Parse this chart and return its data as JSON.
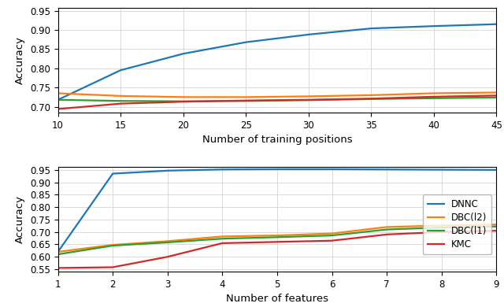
{
  "top": {
    "x": [
      10,
      15,
      20,
      25,
      30,
      35,
      40,
      45
    ],
    "DNNC": [
      0.718,
      0.795,
      0.838,
      0.868,
      0.888,
      0.904,
      0.91,
      0.915
    ],
    "DBC_l2": [
      0.735,
      0.728,
      0.725,
      0.725,
      0.727,
      0.73,
      0.735,
      0.737
    ],
    "DBC_l1": [
      0.718,
      0.715,
      0.714,
      0.715,
      0.717,
      0.72,
      0.722,
      0.724
    ],
    "KMC": [
      0.694,
      0.708,
      0.713,
      0.716,
      0.718,
      0.721,
      0.726,
      0.729
    ],
    "ylim": [
      0.685,
      0.958
    ],
    "yticks": [
      0.7,
      0.75,
      0.8,
      0.85,
      0.9,
      0.95
    ],
    "xlim": [
      10,
      45
    ],
    "xticks": [
      10,
      15,
      20,
      25,
      30,
      35,
      40,
      45
    ],
    "xlabel": "Number of training positions",
    "ylabel": "Accuracy"
  },
  "bottom": {
    "x": [
      1,
      2,
      3,
      4,
      5,
      6,
      7,
      8,
      9
    ],
    "DNNC": [
      0.62,
      0.935,
      0.947,
      0.952,
      0.953,
      0.953,
      0.952,
      0.951,
      0.95
    ],
    "DBC_l2": [
      0.62,
      0.648,
      0.663,
      0.682,
      0.686,
      0.694,
      0.72,
      0.726,
      0.73
    ],
    "DBC_l1": [
      0.61,
      0.645,
      0.658,
      0.673,
      0.679,
      0.686,
      0.71,
      0.718,
      0.722
    ],
    "KMC": [
      0.555,
      0.558,
      0.6,
      0.655,
      0.66,
      0.665,
      0.69,
      0.7,
      0.705
    ],
    "ylim": [
      0.54,
      0.962
    ],
    "yticks": [
      0.55,
      0.6,
      0.65,
      0.7,
      0.75,
      0.8,
      0.85,
      0.9,
      0.95
    ],
    "xlim": [
      1,
      9
    ],
    "xticks": [
      1,
      2,
      3,
      4,
      5,
      6,
      7,
      8,
      9
    ],
    "xlabel": "Number of features",
    "ylabel": "Accuracy"
  },
  "colors": {
    "DNNC": "#1f77b4",
    "DBC_l2": "#ff7f0e",
    "DBC_l1": "#2ca02c",
    "KMC": "#d62728"
  },
  "legend_labels": [
    "DNNC",
    "DBC(l2)",
    "DBC(l1)",
    "KMC"
  ],
  "legend_keys": [
    "DNNC",
    "DBC_l2",
    "DBC_l1",
    "KMC"
  ],
  "figsize": [
    6.4,
    3.9
  ],
  "dpi": 100,
  "lw": 1.6
}
